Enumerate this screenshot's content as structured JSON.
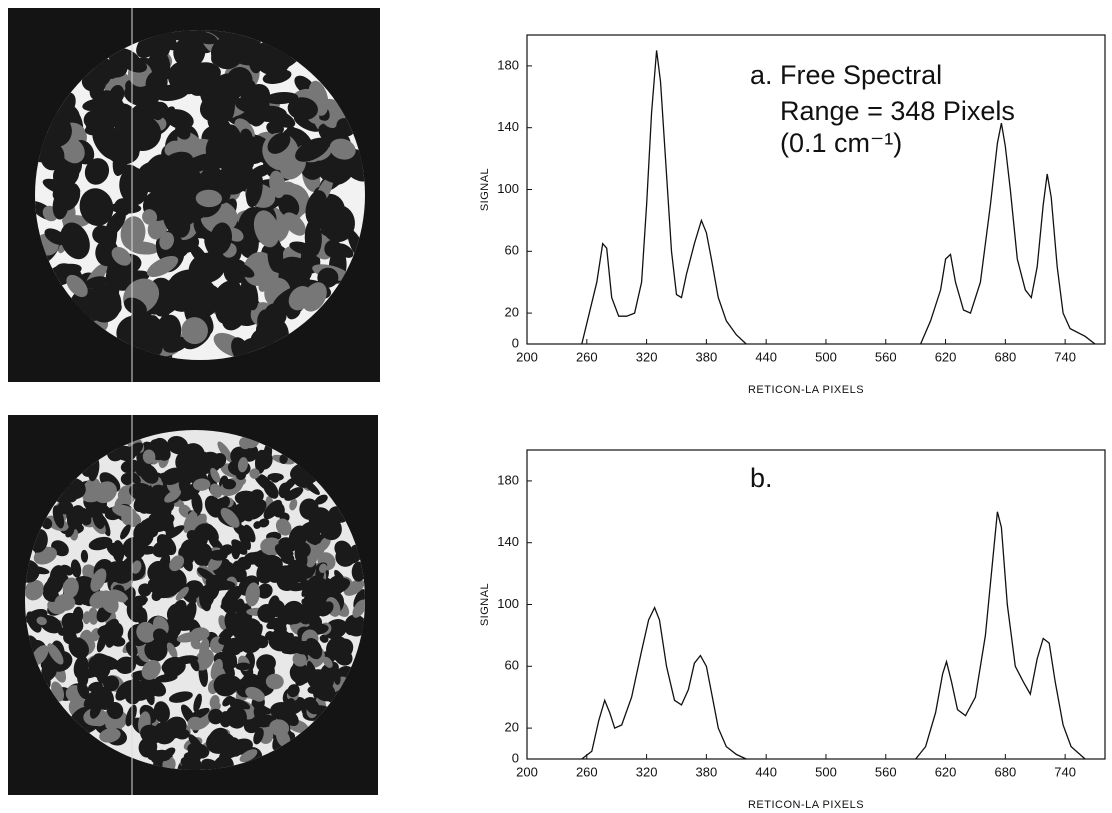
{
  "chart_data": [
    {
      "type": "line",
      "annotations": [
        "a.  Free Spectral",
        "Range = 348 Pixels",
        "(0.1 cm⁻¹)"
      ],
      "y_label": "SIGNAL",
      "x_label": "RETICON-LA PIXELS",
      "x": [
        255,
        270,
        276,
        280,
        285,
        292,
        300,
        308,
        315,
        320,
        325,
        330,
        334,
        340,
        345,
        350,
        355,
        360,
        368,
        375,
        380,
        385,
        392,
        400,
        410,
        420,
        null,
        595,
        605,
        615,
        620,
        625,
        630,
        638,
        645,
        655,
        665,
        672,
        676,
        680,
        685,
        692,
        700,
        706,
        712,
        718,
        722,
        726,
        732,
        738,
        745,
        760,
        770
      ],
      "values": [
        0,
        40,
        65,
        62,
        30,
        18,
        18,
        20,
        40,
        90,
        150,
        190,
        170,
        110,
        60,
        32,
        30,
        45,
        65,
        80,
        72,
        55,
        30,
        15,
        6,
        0,
        null,
        0,
        15,
        35,
        55,
        58,
        40,
        22,
        20,
        40,
        90,
        130,
        143,
        128,
        100,
        55,
        35,
        30,
        50,
        90,
        110,
        95,
        50,
        20,
        10,
        5,
        0
      ],
      "color": "#111111",
      "xlim": [
        200,
        780
      ],
      "ylim": [
        0,
        200
      ],
      "xticks": [
        200,
        260,
        320,
        380,
        440,
        500,
        560,
        620,
        680,
        740
      ],
      "yticks": [
        0,
        20,
        60,
        100,
        140,
        180
      ]
    },
    {
      "type": "line",
      "annotations": [
        "b."
      ],
      "y_label": "SIGNAL",
      "x_label": "RETICON-LA PIXELS",
      "x": [
        255,
        265,
        272,
        278,
        283,
        288,
        295,
        305,
        315,
        322,
        328,
        333,
        340,
        348,
        355,
        362,
        368,
        374,
        380,
        386,
        392,
        400,
        410,
        420,
        null,
        590,
        600,
        610,
        617,
        621,
        626,
        632,
        640,
        650,
        660,
        666,
        672,
        676,
        682,
        690,
        698,
        705,
        712,
        718,
        724,
        730,
        738,
        746,
        760
      ],
      "values": [
        0,
        5,
        25,
        38,
        30,
        20,
        22,
        40,
        70,
        90,
        98,
        90,
        60,
        38,
        35,
        45,
        62,
        67,
        60,
        40,
        20,
        8,
        3,
        0,
        null,
        0,
        8,
        30,
        55,
        63,
        50,
        32,
        28,
        40,
        80,
        120,
        160,
        150,
        100,
        60,
        50,
        42,
        65,
        78,
        75,
        50,
        22,
        8,
        0
      ],
      "color": "#111111",
      "xlim": [
        200,
        780
      ],
      "ylim": [
        0,
        200
      ],
      "xticks": [
        200,
        260,
        320,
        380,
        440,
        500,
        560,
        620,
        680,
        740
      ],
      "yticks": [
        0,
        20,
        60,
        100,
        140,
        180
      ]
    }
  ]
}
